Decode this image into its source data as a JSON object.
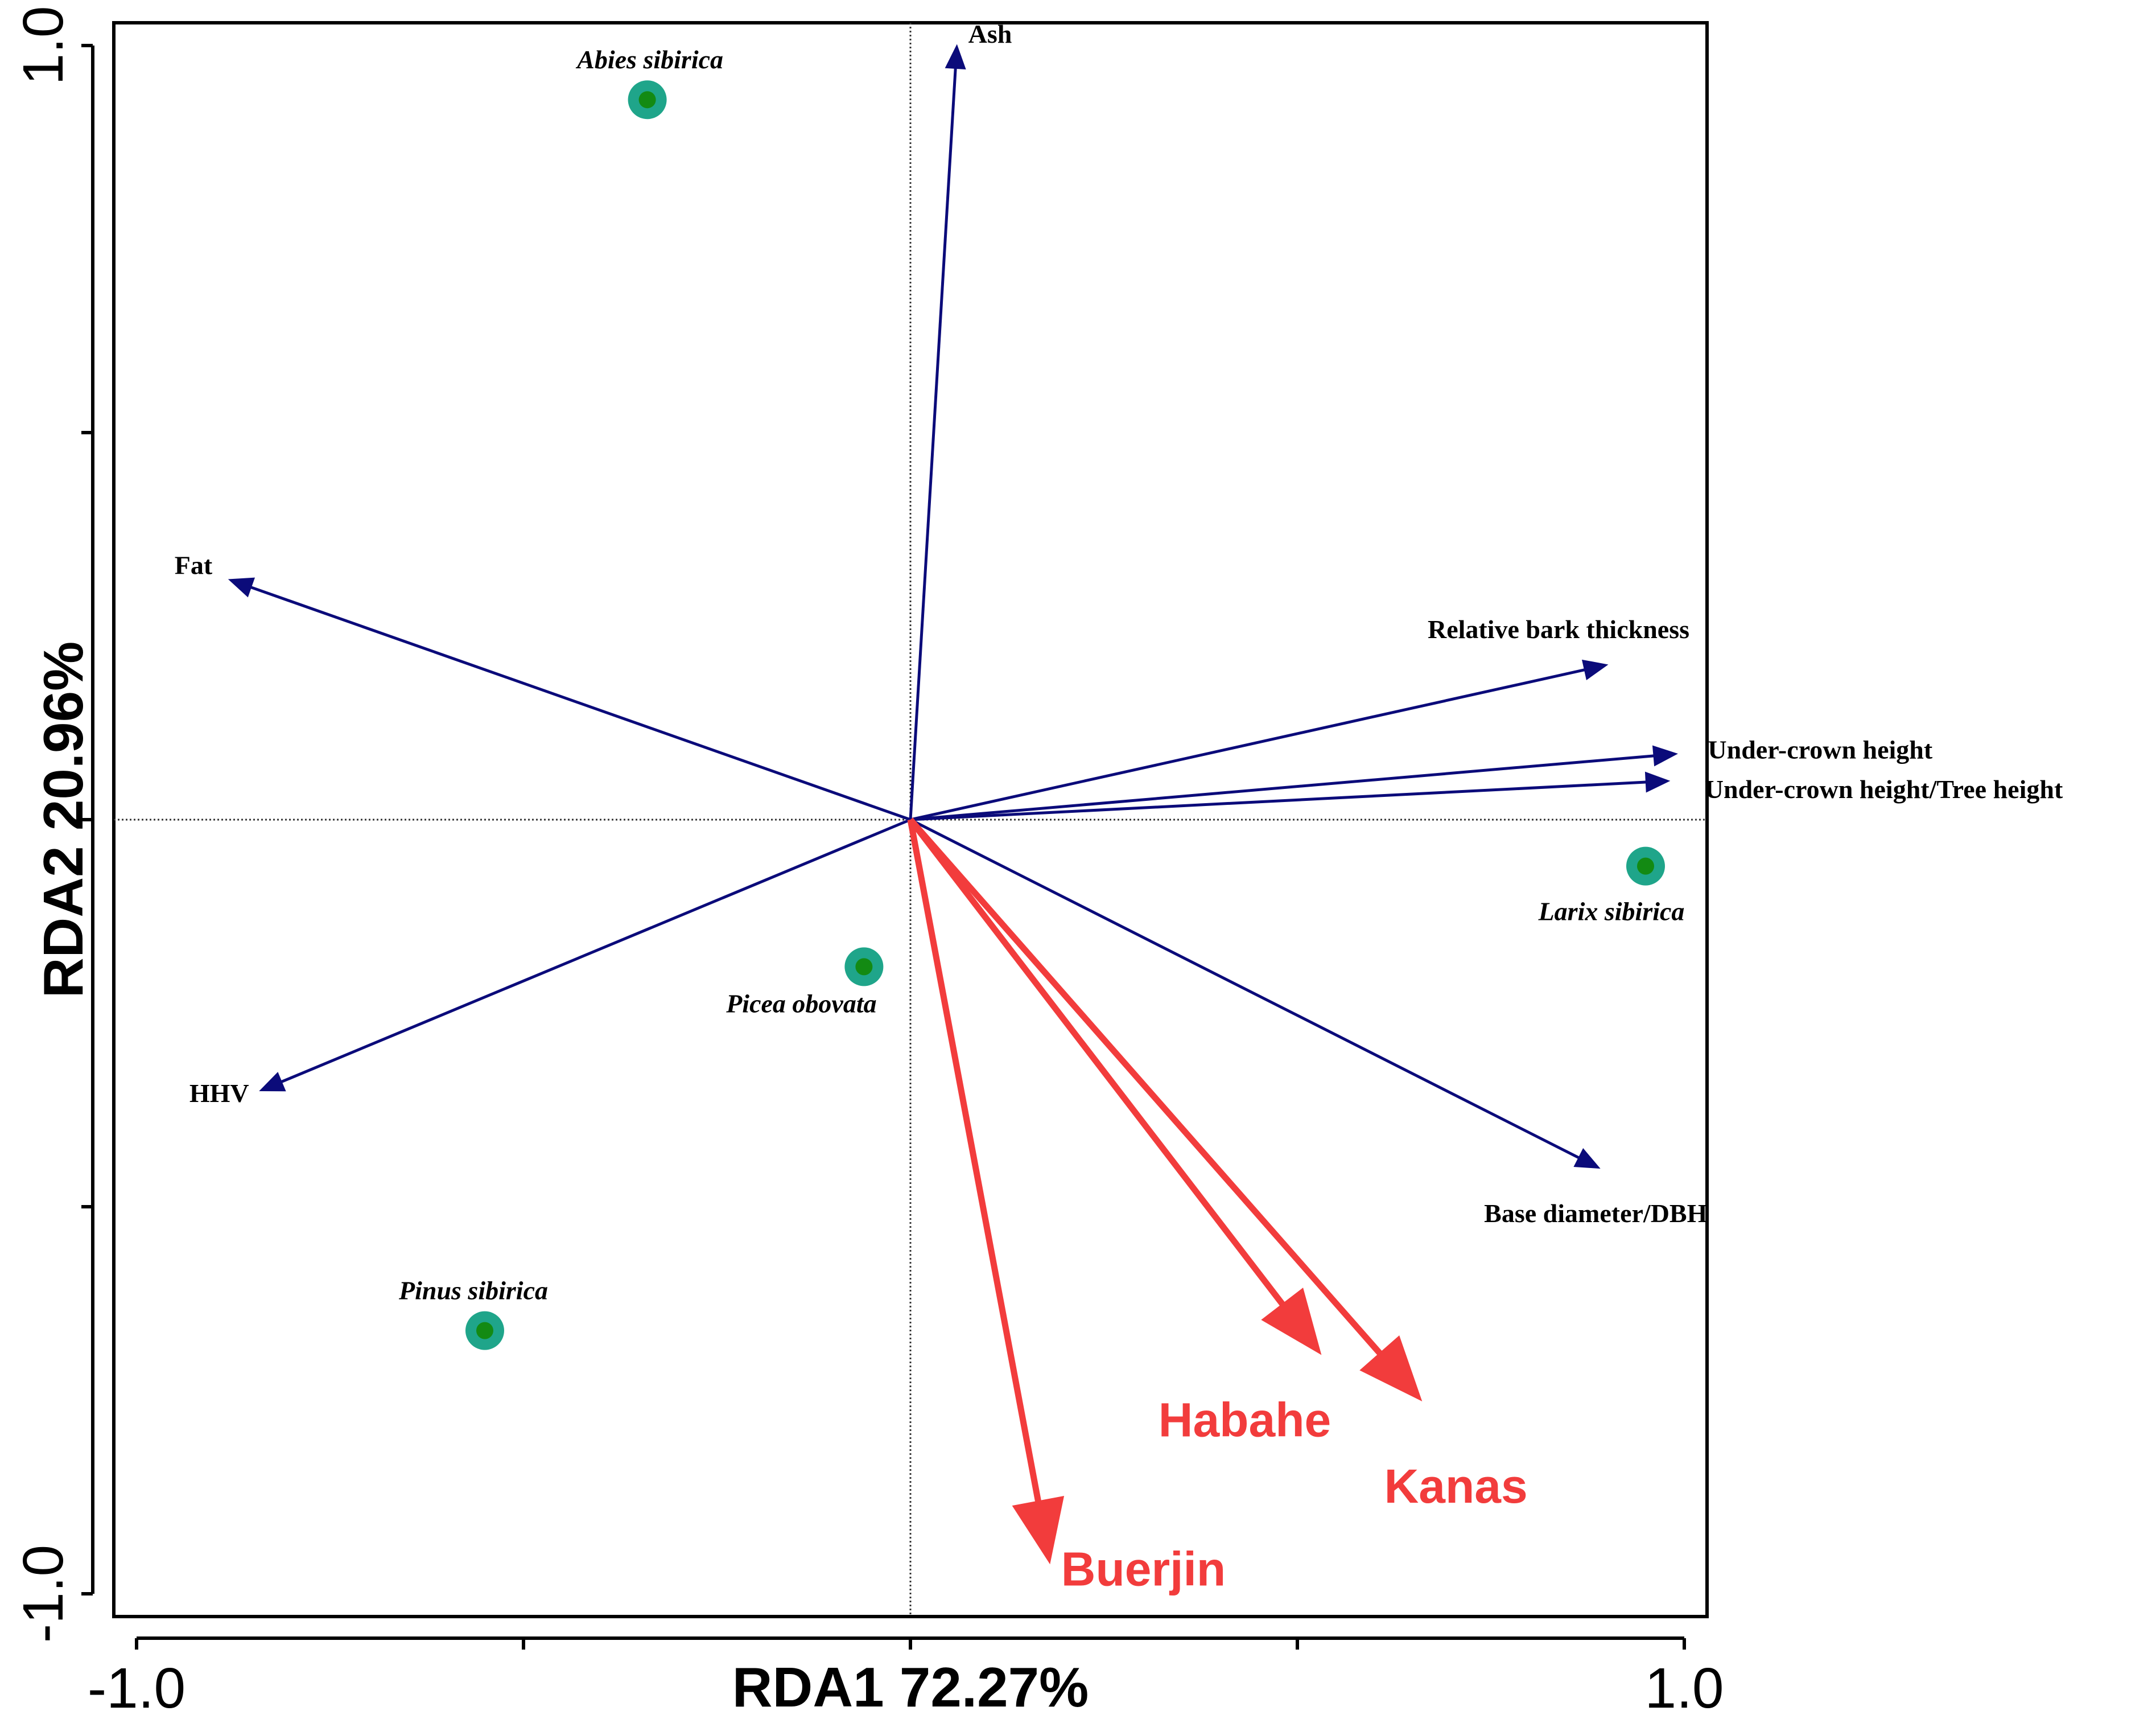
{
  "chart_data": {
    "type": "biplot",
    "xlabel": "RDA1 72.27%",
    "ylabel": "RDA2 20.96%",
    "xlim": [
      -1.0,
      1.0
    ],
    "ylim": [
      -1.0,
      1.0
    ],
    "x_tick_labels": [
      "-1.0",
      "1.0"
    ],
    "y_tick_labels": [
      "-1.0",
      "1.0"
    ],
    "x_ticks": [
      -1.0,
      -0.5,
      0.0,
      0.5,
      1.0
    ],
    "y_ticks": [
      -1.0,
      -0.5,
      0.0,
      0.5,
      1.0
    ],
    "species": [
      {
        "name": "Abies sibirica",
        "x": -0.34,
        "y": 0.93
      },
      {
        "name": "Picea obovata",
        "x": -0.06,
        "y": -0.19
      },
      {
        "name": "Pinus sibirica",
        "x": -0.55,
        "y": -0.66
      },
      {
        "name": "Larix sibirica",
        "x": 0.95,
        "y": -0.06
      }
    ],
    "variables": [
      {
        "name": "Ash",
        "x": 0.06,
        "y": 1.0
      },
      {
        "name": "Fat",
        "x": -0.88,
        "y": 0.31
      },
      {
        "name": "HHV",
        "x": -0.84,
        "y": -0.35
      },
      {
        "name": "Relative bark thickness",
        "x": 0.9,
        "y": 0.2
      },
      {
        "name": "Under-crown height",
        "x": 0.99,
        "y": 0.085
      },
      {
        "name": "Under-crown height/Tree height",
        "x": 0.98,
        "y": 0.05
      },
      {
        "name": "Base diameter/DBH",
        "x": 0.89,
        "y": -0.45
      }
    ],
    "sites": [
      {
        "name": "Habahe",
        "x": 0.53,
        "y": -0.69
      },
      {
        "name": "Kanas",
        "x": 0.66,
        "y": -0.75
      },
      {
        "name": "Buerjin",
        "x": 0.18,
        "y": -0.96
      }
    ],
    "colors": {
      "variable_arrow": "#0b0b7a",
      "site_arrow": "#f23c3c",
      "species_outer": "#1fa58a",
      "species_inner": "#138a13",
      "axis": "#000000"
    }
  }
}
